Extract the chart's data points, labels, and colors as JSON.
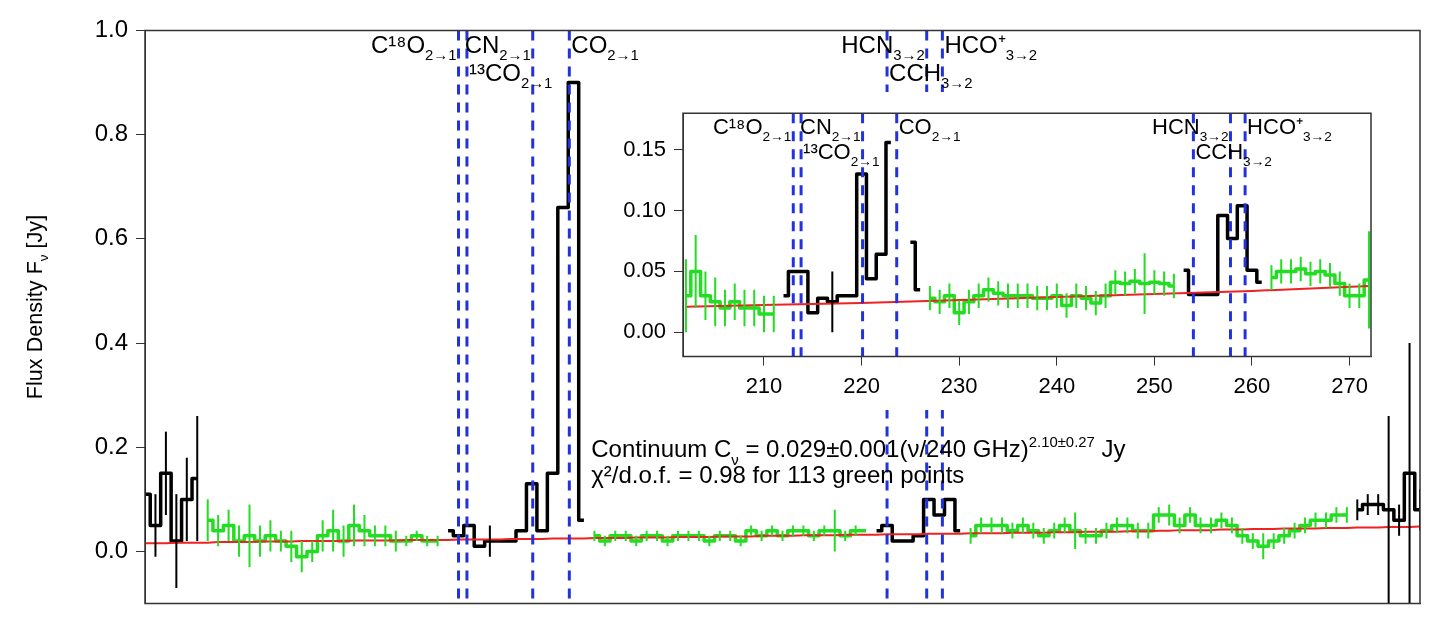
{
  "chart_data": [
    {
      "type": "step",
      "ylabel": "Flux Density F$_{ν}$ [Jy]",
      "categories": [
        null,
        null,
        null,
        null,
        null,
        null,
        null,
        null,
        null,
        null,
        null,
        null,
        null,
        null,
        null,
        null,
        null,
        null,
        null,
        null,
        null,
        null,
        null,
        null,
        null,
        null,
        null,
        null,
        null,
        null,
        null,
        null,
        null,
        null,
        null,
        null,
        null,
        null,
        null,
        null,
        null,
        null,
        null,
        null,
        null,
        null,
        null,
        null,
        null,
        null,
        null,
        null,
        null,
        null,
        null,
        null,
        null,
        null,
        null,
        null,
        null,
        null,
        null,
        null,
        null,
        null,
        null,
        null,
        null,
        null,
        null,
        null,
        null,
        null,
        null,
        null,
        null,
        null,
        null,
        null,
        null,
        null,
        null,
        null,
        null,
        null,
        null,
        null,
        null,
        null,
        null,
        null,
        null,
        null,
        null,
        null,
        null,
        null,
        null,
        null,
        null,
        null,
        null,
        null,
        null,
        null,
        null,
        null,
        null,
        null,
        null,
        null,
        null,
        null,
        null,
        null,
        null,
        null,
        null,
        null,
        null,
        null,
        null
      ],
      "ylim": [
        -0.1,
        1.0
      ],
      "yticks": [
        {
          "value": 0,
          "label": "0.0"
        },
        {
          "value": 0.2,
          "label": "0.2"
        },
        {
          "value": 0.4,
          "label": "0.4"
        },
        {
          "value": 0.6,
          "label": "0.6"
        },
        {
          "value": 0.8,
          "label": "0.8"
        },
        {
          "value": 1,
          "label": "1.0"
        }
      ],
      "tick_labels": "y",
      "grid": false,
      "series": [
        {
          "type": "step",
          "color": "#000000",
          "values": [
            0.11,
            0.05,
            0.15,
            0.02,
            0.1,
            0.14,
            null,
            null,
            null,
            null,
            null,
            null,
            null,
            null,
            null,
            null,
            null,
            null,
            null,
            null,
            null,
            null,
            null,
            null,
            null,
            null,
            null,
            null,
            null,
            0.04,
            0.03,
            0.05,
            0.01,
            0.02,
            0.02,
            0.02,
            0.04,
            0.13,
            0.04,
            0.15,
            0.66,
            0.9,
            0.06,
            null,
            null,
            null,
            null,
            null,
            null,
            null,
            null,
            null,
            null,
            null,
            null,
            null,
            null,
            null,
            null,
            null,
            null,
            null,
            null,
            null,
            null,
            null,
            null,
            null,
            null,
            null,
            0.04,
            0.05,
            0.02,
            0.02,
            0.03,
            0.1,
            0.07,
            0.1,
            0.04,
            null,
            null,
            null,
            null,
            null,
            null,
            null,
            null,
            null,
            null,
            null,
            null,
            null,
            null,
            null,
            null,
            null,
            null,
            null,
            null,
            null,
            null,
            null,
            null,
            null,
            null,
            null,
            null,
            null,
            null,
            null,
            null,
            null,
            null,
            null,
            null,
            null,
            0.08,
            0.09,
            0.09,
            0.08,
            0.06,
            0.15,
            0.08
          ],
          "errors": [
            0.09,
            0.06,
            0.08,
            0.09,
            0.08,
            0.12,
            null,
            null,
            null,
            null,
            null,
            null,
            null,
            null,
            null,
            null,
            null,
            null,
            null,
            null,
            null,
            null,
            null,
            null,
            null,
            null,
            null,
            null,
            null,
            null,
            null,
            null,
            null,
            0.03,
            null,
            null,
            null,
            null,
            null,
            null,
            null,
            null,
            null,
            null,
            null,
            null,
            null,
            null,
            null,
            null,
            null,
            null,
            null,
            null,
            null,
            null,
            null,
            null,
            null,
            null,
            null,
            null,
            null,
            null,
            null,
            null,
            null,
            null,
            null,
            null,
            null,
            null,
            null,
            null,
            null,
            null,
            null,
            null,
            null,
            null,
            null,
            null,
            null,
            null,
            null,
            null,
            null,
            null,
            null,
            null,
            null,
            null,
            null,
            null,
            null,
            null,
            null,
            null,
            null,
            null,
            null,
            null,
            null,
            null,
            null,
            null,
            null,
            null,
            null,
            null,
            null,
            null,
            null,
            null,
            null,
            null,
            0.02,
            0.02,
            0.02,
            0.18,
            0.03,
            0.25,
            0.04
          ]
        },
        {
          "type": "step",
          "color": "#22dd22",
          "values": [
            null,
            null,
            null,
            null,
            null,
            null,
            0.06,
            0.04,
            0.05,
            0.02,
            0.03,
            0.02,
            0.03,
            0.02,
            0.01,
            -0.01,
            0,
            0.03,
            0.04,
            0.02,
            0.05,
            0.04,
            0.03,
            0.03,
            0.02,
            0.02,
            0.03,
            0.02,
            0.02,
            null,
            null,
            null,
            null,
            null,
            null,
            null,
            null,
            null,
            null,
            null,
            null,
            null,
            null,
            0.03,
            0.02,
            0.03,
            0.03,
            0.02,
            0.03,
            0.03,
            0.02,
            0.03,
            0.03,
            0.03,
            0.02,
            0.03,
            0.03,
            0.02,
            0.04,
            0.03,
            0.04,
            0.03,
            0.04,
            0.04,
            0.03,
            0.04,
            0.04,
            0.03,
            0.04,
            0.04,
            null,
            null,
            null,
            null,
            null,
            null,
            null,
            null,
            null,
            0.03,
            0.05,
            0.05,
            0.05,
            0.04,
            0.05,
            0.04,
            0.03,
            0.04,
            0.05,
            0.04,
            0.03,
            0.03,
            0.04,
            0.05,
            0.05,
            0.04,
            0.04,
            0.07,
            0.07,
            0.05,
            0.07,
            0.05,
            0.05,
            0.06,
            0.05,
            0.03,
            0.02,
            0.01,
            0.02,
            0.03,
            0.04,
            0.05,
            0.06,
            0.06,
            0.07,
            0.07,
            null,
            null,
            null,
            null,
            null,
            null,
            null
          ],
          "errors": [
            null,
            null,
            null,
            null,
            null,
            null,
            0.04,
            0.03,
            0.03,
            0.03,
            0.06,
            0.03,
            0.03,
            0.02,
            0.03,
            0.03,
            0.02,
            0.03,
            0.04,
            0.03,
            0.04,
            0.03,
            0.02,
            0.02,
            0.02,
            0.01,
            0.01,
            0.01,
            0.01,
            null,
            null,
            null,
            null,
            null,
            null,
            null,
            null,
            null,
            null,
            null,
            null,
            null,
            null,
            0.01,
            0.01,
            0.01,
            0.01,
            0.01,
            0.01,
            0.01,
            0.01,
            0.01,
            0.01,
            0.01,
            0.01,
            0.01,
            0.01,
            0.01,
            0.01,
            0.01,
            0.01,
            0.01,
            0.01,
            0.01,
            0.01,
            0.01,
            0.04,
            0.01,
            0.01,
            null,
            null,
            null,
            null,
            null,
            null,
            null,
            null,
            null,
            null,
            0.015,
            0.015,
            0.015,
            0.015,
            0.015,
            0.015,
            0.015,
            0.015,
            0.015,
            0.015,
            0.035,
            0.015,
            0.015,
            0.015,
            0.015,
            0.015,
            0.015,
            0.015,
            0.015,
            0.02,
            0.015,
            0.015,
            0.015,
            0.015,
            0.015,
            0.015,
            0.015,
            0.015,
            0.025,
            0.015,
            0.015,
            0.015,
            0.015,
            0.015,
            0.015,
            0.015,
            0.015,
            null,
            null,
            null,
            null,
            null,
            null,
            null
          ]
        },
        {
          "type": "line",
          "color": "#ee2222",
          "values": [
            0.016,
            0.016,
            0.016,
            0.017,
            0.017,
            0.017,
            0.017,
            0.018,
            0.018,
            0.018,
            0.018,
            0.019,
            0.019,
            0.019,
            0.019,
            0.02,
            0.02,
            0.02,
            0.02,
            0.02,
            0.021,
            0.021,
            0.021,
            0.021,
            0.021,
            0.022,
            0.022,
            0.022,
            0.022,
            0.022,
            0.023,
            0.023,
            0.023,
            0.023,
            0.023,
            0.024,
            0.024,
            0.024,
            0.024,
            0.025,
            0.025,
            0.025,
            0.025,
            0.026,
            0.026,
            0.026,
            0.026,
            0.027,
            0.027,
            0.027,
            0.027,
            0.028,
            0.028,
            0.028,
            0.028,
            0.029,
            0.029,
            0.029,
            0.029,
            0.03,
            0.03,
            0.03,
            0.03,
            0.031,
            0.031,
            0.031,
            0.031,
            0.032,
            0.032,
            0.032,
            0.032,
            0.033,
            0.033,
            0.033,
            0.033,
            0.034,
            0.034,
            0.034,
            0.034,
            0.035,
            0.035,
            0.035,
            0.035,
            0.036,
            0.036,
            0.036,
            0.036,
            0.037,
            0.037,
            0.037,
            0.038,
            0.038,
            0.038,
            0.038,
            0.039,
            0.039,
            0.039,
            0.04,
            0.04,
            0.041,
            0.041,
            0.041,
            0.041,
            0.042,
            0.042,
            0.042,
            0.043,
            0.043,
            0.043,
            0.044,
            0.044,
            0.044,
            0.044,
            0.045,
            0.045,
            0.045,
            0.046,
            0.046,
            0.046,
            0.047,
            0.047,
            0.047,
            0.048
          ]
        }
      ],
      "annotations": [
        "C¹⁸O$_{2→1}$",
        "¹³CO$_{2→1}$",
        "CN$_{2→1}$",
        "CO$_{2→1}$",
        "CCH$_{3→2}$",
        "HCN$_{3→2}$",
        "HCO⁺$_{3→2}$",
        "Continuum C$_{ν}$ = 0.029±0.001(ν/240 GHz)$^{2.10±0.27}$ Jy",
        "χ²/d.o.f. = 0.98 for 113 green points"
      ]
    },
    {
      "type": "step",
      "xlim": [
        201.7,
        272.2
      ],
      "xticks": [
        210,
        220,
        230,
        240,
        250,
        260,
        270
      ],
      "ylim": [
        -0.02,
        0.18
      ],
      "yticks": [
        {
          "value": 0,
          "label": "0.00"
        },
        0.05,
        {
          "value": 0.1,
          "label": "0.10"
        },
        0.15
      ],
      "grid": false,
      "series": [
        {
          "type": "step",
          "color": "#22dd22",
          "x": [
            202,
            203,
            204,
            205,
            206,
            207,
            208,
            209,
            210,
            211
          ],
          "values": [
            0.03,
            0.05,
            0.03,
            0.025,
            0.02,
            0.025,
            0.02,
            0.02,
            0.015,
            0.015
          ],
          "errors": [
            0.03,
            0.03,
            0.02,
            0.02,
            0.015,
            0.015,
            0.015,
            0.015,
            0.015,
            0.015
          ]
        },
        {
          "type": "step",
          "color": "#000000",
          "x": [
            212,
            213,
            214,
            215,
            216,
            217,
            218,
            219,
            220,
            221,
            222,
            223,
            224,
            225,
            226
          ],
          "values": [
            0.03,
            0.05,
            0.05,
            0.016,
            0.028,
            0.025,
            0.03,
            0.03,
            0.13,
            0.044,
            0.064,
            0.156,
            null,
            0.074,
            0.035
          ],
          "errors": [
            null,
            null,
            null,
            null,
            null,
            0.025,
            null,
            null,
            null,
            null,
            null,
            null,
            null,
            null,
            null
          ]
        },
        {
          "type": "step",
          "color": "#22dd22",
          "x": [
            227,
            228,
            229,
            230,
            231,
            232,
            233,
            234,
            235,
            236,
            237,
            238,
            239,
            240,
            241,
            242,
            243,
            244,
            245,
            246,
            247,
            248,
            249,
            250,
            251,
            252
          ],
          "values": [
            0.028,
            0.025,
            0.03,
            0.016,
            0.025,
            0.03,
            0.035,
            0.032,
            0.03,
            0.03,
            0.03,
            0.028,
            0.028,
            0.03,
            0.022,
            0.03,
            0.028,
            0.024,
            0.03,
            0.041,
            0.04,
            0.042,
            0.04,
            0.041,
            0.04,
            0.038
          ],
          "errors": [
            0.01,
            0.01,
            0.01,
            0.01,
            0.01,
            0.01,
            0.01,
            0.01,
            0.01,
            0.01,
            0.01,
            0.01,
            0.01,
            0.01,
            0.01,
            0.01,
            0.01,
            0.01,
            0.01,
            0.01,
            0.01,
            0.01,
            0.025,
            0.01,
            0.01,
            0.01
          ]
        },
        {
          "type": "step",
          "color": "#000000",
          "x": [
            253,
            254,
            255,
            256,
            257,
            258,
            259,
            260,
            261
          ],
          "values": [
            0.051,
            0.031,
            0.031,
            0.031,
            0.096,
            0.077,
            0.104,
            0.051,
            0.041
          ]
        },
        {
          "type": "step",
          "color": "#22dd22",
          "x": [
            262,
            263,
            264,
            265,
            266,
            267,
            268,
            269,
            270,
            271,
            272
          ],
          "values": [
            0.045,
            0.05,
            0.05,
            0.052,
            0.048,
            0.05,
            0.047,
            0.04,
            0.03,
            0.03,
            0.043
          ],
          "errors": [
            0.01,
            0.01,
            0.01,
            0.01,
            0.01,
            0.01,
            0.01,
            0.01,
            0.01,
            0.01,
            0.04
          ]
        },
        {
          "type": "line",
          "color": "#ee2222",
          "x": [
            202,
            220,
            240,
            260,
            272
          ],
          "values": [
            0.021,
            0.024,
            0.029,
            0.034,
            0.038
          ]
        }
      ],
      "ref_lines": [
        {
          "axis": "x",
          "value": 213.0,
          "label": "C¹⁸O$_{2→1}$",
          "color": "#2233dd",
          "line_style": "dashed"
        },
        {
          "axis": "x",
          "value": 213.8,
          "label": "¹³CO$_{2→1}$",
          "color": "#2233dd",
          "line_style": "dashed"
        },
        {
          "axis": "x",
          "value": 220.1,
          "label": "CN$_{2→1}$",
          "color": "#2233dd",
          "line_style": "dashed"
        },
        {
          "axis": "x",
          "value": 223.6,
          "label": "CO$_{2→1}$",
          "color": "#2233dd",
          "line_style": "dashed"
        },
        {
          "axis": "x",
          "value": 254.0,
          "label": "CCH$_{3→2}$",
          "color": "#2233dd",
          "line_style": "dashed"
        },
        {
          "axis": "x",
          "value": 257.8,
          "label": "HCN$_{3→2}$",
          "color": "#2233dd",
          "line_style": "dashed"
        },
        {
          "axis": "x",
          "value": 259.3,
          "label": "HCO⁺$_{3→2}$",
          "color": "#2233dd",
          "line_style": "dashed"
        }
      ]
    }
  ]
}
